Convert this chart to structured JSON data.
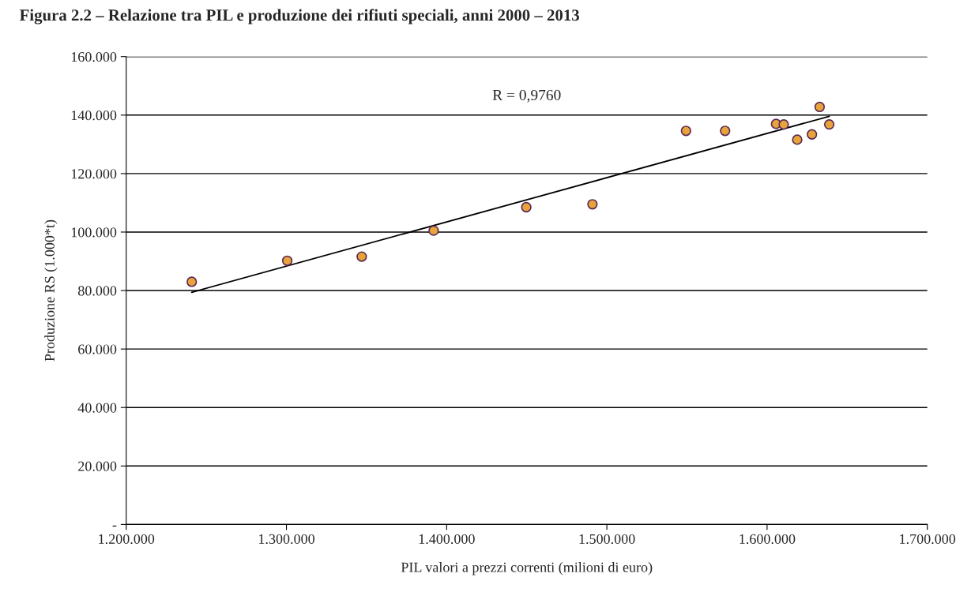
{
  "chart_data": {
    "type": "scatter",
    "title": "Figura 2.2 – Relazione tra PIL e produzione dei rifiuti speciali, anni 2000 – 2013",
    "xlabel": "PIL valori a prezzi correnti (milioni di euro)",
    "ylabel": "Produzione RS (1.000*t)",
    "x": [
      1240900,
      1300500,
      1347000,
      1391900,
      1449700,
      1491000,
      1549400,
      1573800,
      1605600,
      1610400,
      1618800,
      1628000,
      1632800,
      1638800
    ],
    "series": [
      {
        "color": "#e8a33c",
        "marker": "circle",
        "values": [
          83000,
          90200,
          91600,
          100500,
          108500,
          109500,
          134600,
          134600,
          137000,
          136800,
          131600,
          133400,
          142800,
          136800
        ]
      },
      {
        "type": "line",
        "color": "#000000",
        "marker": "none",
        "x": [
          1240900,
          1638800
        ],
        "values": [
          79400,
          139600
        ]
      }
    ],
    "annotations": [
      "R = 0,9760"
    ],
    "xlim": [
      1200000,
      1700000
    ],
    "xticks": [
      {
        "value": 1200000,
        "label": "1.200.000"
      },
      {
        "value": 1300000,
        "label": "1.300.000"
      },
      {
        "value": 1400000,
        "label": "1.400.000"
      },
      {
        "value": 1500000,
        "label": "1.500.000"
      },
      {
        "value": 1600000,
        "label": "1.600.000"
      },
      {
        "value": 1700000,
        "label": "1.700.000"
      }
    ],
    "ylim": [
      0,
      160000
    ],
    "yticks": [
      {
        "value": 0,
        "label": "-"
      },
      {
        "value": 20000,
        "label": "20.000"
      },
      {
        "value": 40000,
        "label": "40.000"
      },
      {
        "value": 60000,
        "label": "60.000"
      },
      {
        "value": 80000,
        "label": "80.000"
      },
      {
        "value": 100000,
        "label": "100.000"
      },
      {
        "value": 120000,
        "label": "120.000"
      },
      {
        "value": 140000,
        "label": "140.000"
      },
      {
        "value": 160000,
        "label": "160.000"
      }
    ],
    "grid": "y"
  }
}
